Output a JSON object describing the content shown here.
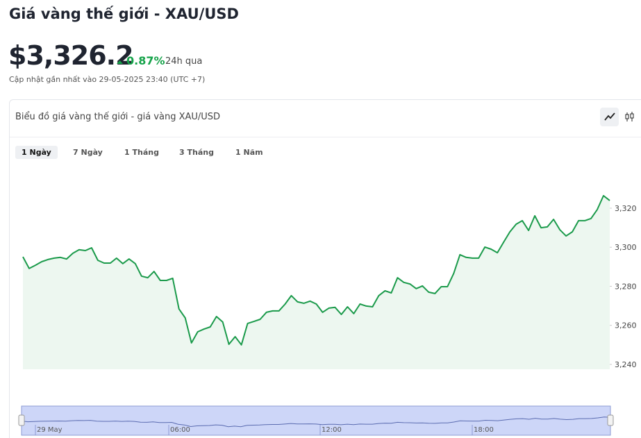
{
  "header": {
    "title": "Giá vàng thế giới - XAU/USD",
    "price": "$3,326.2",
    "change": "0.87%",
    "change_period": "24h qua",
    "updated": "Cập nhật gần nhất vào 29-05-2025 23:40 (UTC +7)"
  },
  "chart_data": {
    "type": "area",
    "title": "Biểu đồ giá vàng thế giới - giá vàng XAU/USD",
    "ranges": [
      "1 Ngày",
      "7 Ngày",
      "1 Tháng",
      "3 Tháng",
      "1 Năm"
    ],
    "active_range": 0,
    "color": "#1a9a4a",
    "fill": "#edf7f0",
    "values": [
      3295.1,
      3289.1,
      3290.8,
      3292.6,
      3293.7,
      3294.4,
      3294.8,
      3294.0,
      3296.9,
      3298.7,
      3298.3,
      3299.7,
      3293.3,
      3291.9,
      3291.9,
      3294.4,
      3291.6,
      3294.0,
      3291.6,
      3285.2,
      3284.4,
      3287.6,
      3283.0,
      3283.0,
      3284.1,
      3268.4,
      3263.8,
      3251.0,
      3256.7,
      3258.1,
      3259.2,
      3264.5,
      3261.7,
      3250.3,
      3254.2,
      3250.0,
      3261.0,
      3262.0,
      3263.1,
      3266.7,
      3267.4,
      3267.4,
      3270.9,
      3275.2,
      3272.0,
      3271.3,
      3272.4,
      3270.9,
      3266.7,
      3268.8,
      3269.2,
      3265.6,
      3269.5,
      3266.0,
      3270.9,
      3269.9,
      3269.5,
      3275.2,
      3277.7,
      3276.6,
      3284.4,
      3282.0,
      3281.2,
      3278.8,
      3280.2,
      3277.0,
      3276.3,
      3279.8,
      3279.8,
      3286.6,
      3296.2,
      3294.8,
      3294.4,
      3294.4,
      3300.1,
      3299.0,
      3297.2,
      3302.6,
      3307.9,
      3311.8,
      3313.6,
      3308.6,
      3316.1,
      3310.0,
      3310.4,
      3314.3,
      3309.0,
      3305.8,
      3307.9,
      3313.6,
      3313.6,
      3314.7,
      3319.3,
      3326.4,
      3323.9
    ],
    "ylim": [
      3237.5,
      3341.3
    ],
    "yticks": [
      {
        "value": 3240,
        "label": "3,240"
      },
      {
        "value": 3260,
        "label": "3,260"
      },
      {
        "value": 3280,
        "label": "3,280"
      },
      {
        "value": 3300,
        "label": "3,300"
      },
      {
        "value": 3320,
        "label": "3,320"
      }
    ],
    "navigator_labels": [
      "29 May",
      "06:00",
      "12:00",
      "18:00"
    ]
  }
}
